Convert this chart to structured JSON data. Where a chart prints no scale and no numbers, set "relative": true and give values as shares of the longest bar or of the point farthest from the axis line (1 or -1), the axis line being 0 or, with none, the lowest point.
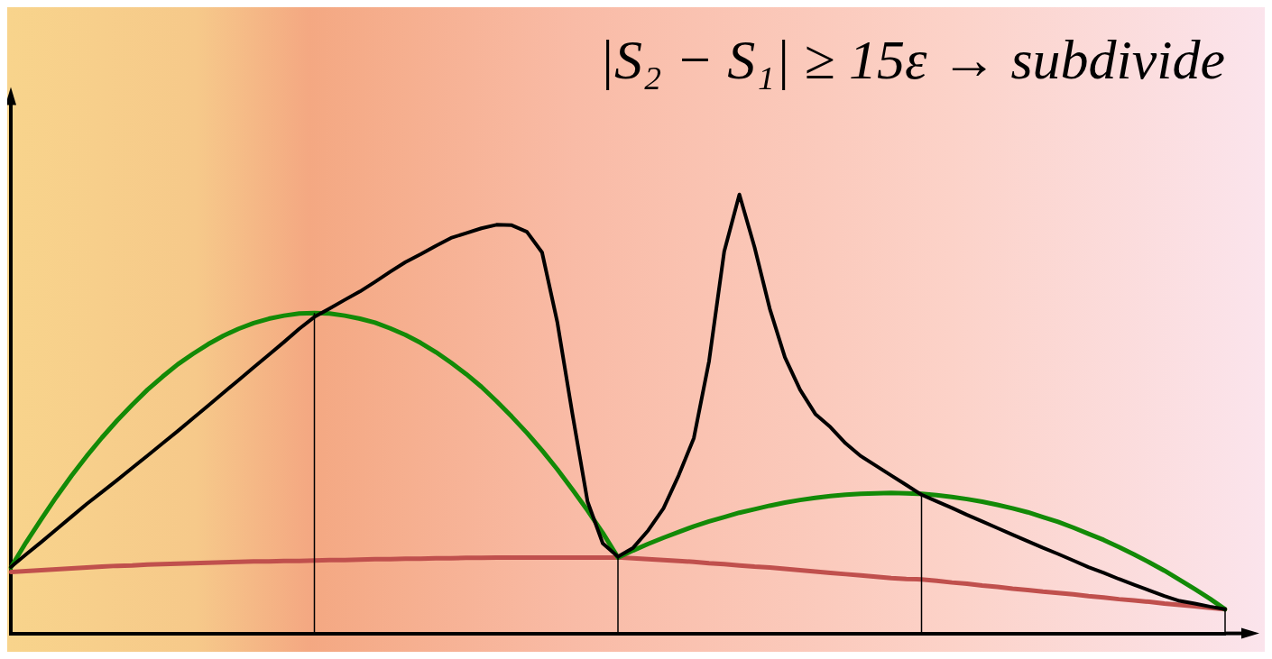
{
  "chart_data": {
    "type": "line",
    "title": "|S₂ − S₁| ≥ 15ε → subdivide",
    "relative": true,
    "grid": false,
    "legend": false,
    "marker": "none",
    "line_style": "solid",
    "categories": [
      null,
      null,
      null,
      null,
      null,
      null,
      null,
      null,
      null,
      null,
      null,
      null,
      null,
      null,
      null,
      null,
      null,
      null,
      null,
      null,
      null,
      null,
      null,
      null,
      null,
      null,
      null,
      null,
      null,
      null,
      null,
      null,
      null,
      null,
      null,
      null,
      null,
      null,
      null,
      null,
      null,
      null,
      null,
      null,
      null,
      null,
      null,
      null,
      null,
      null,
      null,
      null,
      null,
      null,
      null,
      null,
      null,
      null,
      null,
      null,
      null,
      null,
      null,
      null,
      null,
      null,
      null,
      null,
      null,
      null,
      null,
      null,
      null,
      null,
      null,
      null,
      null,
      null,
      null,
      null,
      null
    ],
    "series": [
      {
        "color": "#000000",
        "values": [
          0.151,
          0.18,
          0.208,
          0.237,
          0.266,
          0.295,
          0.322,
          0.349,
          0.377,
          0.405,
          0.433,
          0.461,
          0.49,
          0.519,
          0.548,
          0.577,
          0.606,
          0.635,
          0.664,
          0.694,
          0.721,
          0.74,
          0.76,
          0.779,
          0.801,
          0.824,
          0.846,
          0.864,
          0.883,
          0.901,
          0.912,
          0.923,
          0.931,
          0.93,
          0.915,
          0.868,
          0.71,
          0.5,
          0.3,
          0.205,
          0.175,
          0.195,
          0.235,
          0.285,
          0.36,
          0.445,
          0.62,
          0.87,
          1.0,
          0.88,
          0.74,
          0.629,
          0.555,
          0.5,
          0.47,
          0.433,
          0.404,
          0.382,
          0.36,
          0.338,
          0.316,
          0.301,
          0.286,
          0.27,
          0.255,
          0.24,
          0.225,
          0.21,
          0.195,
          0.181,
          0.166,
          0.151,
          0.138,
          0.124,
          0.111,
          0.098,
          0.085,
          0.074,
          0.068,
          0.061,
          0.055
        ]
      },
      {
        "color": "#138a07",
        "values": [
          0.15,
          0.207,
          0.26,
          0.311,
          0.359,
          0.404,
          0.446,
          0.485,
          0.521,
          0.555,
          0.585,
          0.613,
          0.637,
          0.659,
          0.678,
          0.694,
          0.707,
          0.717,
          0.724,
          0.729,
          0.73,
          0.729,
          0.724,
          0.717,
          0.708,
          0.695,
          0.68,
          0.662,
          0.641,
          0.617,
          0.591,
          0.562,
          0.529,
          0.494,
          0.457,
          0.417,
          0.374,
          0.328,
          0.28,
          0.229,
          0.173,
          0.189,
          0.204,
          0.218,
          0.231,
          0.244,
          0.255,
          0.265,
          0.275,
          0.283,
          0.291,
          0.298,
          0.304,
          0.309,
          0.313,
          0.316,
          0.318,
          0.319,
          0.32,
          0.319,
          0.318,
          0.315,
          0.311,
          0.306,
          0.3,
          0.293,
          0.285,
          0.276,
          0.265,
          0.254,
          0.241,
          0.227,
          0.213,
          0.197,
          0.18,
          0.162,
          0.143,
          0.122,
          0.101,
          0.079,
          0.055
        ]
      },
      {
        "color": "#c0504d",
        "values": [
          0.14,
          0.142,
          0.144,
          0.146,
          0.148,
          0.15,
          0.152,
          0.154,
          0.155,
          0.157,
          0.158,
          0.159,
          0.16,
          0.161,
          0.162,
          0.163,
          0.164,
          0.164,
          0.165,
          0.165,
          0.166,
          0.167,
          0.167,
          0.168,
          0.169,
          0.169,
          0.17,
          0.17,
          0.171,
          0.171,
          0.172,
          0.172,
          0.173,
          0.173,
          0.173,
          0.173,
          0.173,
          0.173,
          0.173,
          0.173,
          0.173,
          0.171,
          0.169,
          0.167,
          0.165,
          0.163,
          0.16,
          0.158,
          0.155,
          0.152,
          0.15,
          0.147,
          0.144,
          0.141,
          0.138,
          0.135,
          0.132,
          0.129,
          0.126,
          0.124,
          0.123,
          0.12,
          0.116,
          0.113,
          0.109,
          0.106,
          0.102,
          0.099,
          0.095,
          0.092,
          0.089,
          0.085,
          0.082,
          0.078,
          0.075,
          0.072,
          0.068,
          0.065,
          0.062,
          0.058,
          0.055
        ]
      }
    ]
  }
}
